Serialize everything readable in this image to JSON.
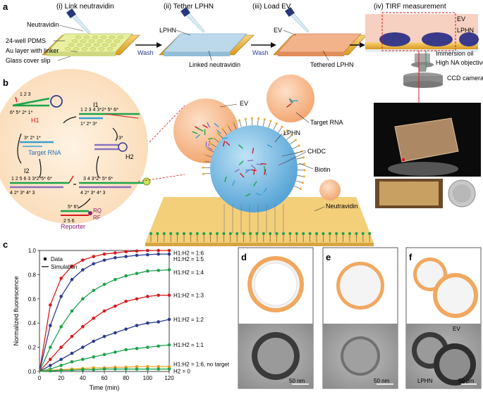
{
  "panel_labels": {
    "a": "a",
    "b": "b",
    "c": "c",
    "d": "d",
    "e": "e",
    "f": "f"
  },
  "panel_a": {
    "step1": "(i) Link neutravidin",
    "step2": "(ii) Tether LPHN",
    "step3": "(iii) Load EV",
    "step4": "(iv) TIRF measurement",
    "neutravidin": "Neutravidin",
    "pdms": "24-well PDMS",
    "au_layer": "Au layer with linker",
    "glass": "Glass cover slip",
    "wash1": "Wash",
    "wash2": "Wash",
    "lphn": "LPHN",
    "linked_neutravidin": "Linked neutravidin",
    "ev": "EV",
    "tethered_lphn": "Tethered LPHN",
    "tirf_ev": "EV",
    "tirf_lphn": "LPHN",
    "immersion_oil": "Immersion oil",
    "objective": "High NA objective",
    "camera": "CCD camera"
  },
  "panel_b": {
    "h1": "H1",
    "target_rna": "Target RNA",
    "i1": "I1",
    "h2": "H2",
    "i2": "I2",
    "reporter": "Reporter",
    "rq": "RQ",
    "rf": "RF",
    "ev": "EV",
    "target_rna2": "Target RNA",
    "lphn": "LPHN",
    "chdc": "CHDC",
    "biotin": "Biotin",
    "neutravidin": "Neutravidin",
    "h1_nums_top": "1  2  3",
    "h1_nums_bot": "6*  5*  2*  1*",
    "i1_nums": "1  2  3   4  3*2* 5* 6*",
    "i1_nums_bot": "1*  2*  3*",
    "t_nums": "3*  2*  1*",
    "h2_nums": "3*",
    "i2_nums_top": "1  2  5  6  3  3*2*5* 6*",
    "i2_nums_bot": "4  2*  3*  4*  3",
    "right_nums_top": "3  4  3*2* 5* 6*",
    "right_nums_bot": "4  2*  3*  4*  3",
    "rep_nums": "5*  6*",
    "rep_nums_bot": "2  5  6"
  },
  "chart_data": {
    "type": "line",
    "xlabel": "Time (min)",
    "ylabel": "Normalized fluorescence",
    "xlim": [
      0,
      120
    ],
    "ylim": [
      0,
      1.0
    ],
    "xticks": [
      0,
      20,
      40,
      60,
      80,
      100,
      120
    ],
    "yticks": [
      0.0,
      0.2,
      0.4,
      0.6,
      0.8,
      1.0
    ],
    "ytick_labels": [
      "0.0",
      "0.2",
      "0.4",
      "0.6",
      "0.8",
      "1.0"
    ],
    "legend": [
      {
        "label": "Data",
        "marker": "dot"
      },
      {
        "label": "Simulation",
        "marker": "line"
      }
    ],
    "x": [
      0,
      10,
      20,
      30,
      40,
      50,
      60,
      70,
      80,
      90,
      100,
      110,
      120
    ],
    "series": [
      {
        "name": "H1:H2 = 1:6",
        "color": "#d7191c",
        "values": [
          0,
          0.55,
          0.77,
          0.87,
          0.92,
          0.95,
          0.97,
          0.98,
          0.99,
          0.995,
          1.0,
          1.0,
          1.0
        ]
      },
      {
        "name": "H1:H2 = 1:5",
        "color": "#2b3a8f",
        "values": [
          0,
          0.38,
          0.62,
          0.76,
          0.84,
          0.89,
          0.92,
          0.94,
          0.95,
          0.96,
          0.965,
          0.97,
          0.97
        ]
      },
      {
        "name": "H1:H2 = 1:4",
        "color": "#1aa34a",
        "values": [
          0,
          0.2,
          0.37,
          0.5,
          0.6,
          0.67,
          0.72,
          0.76,
          0.79,
          0.81,
          0.83,
          0.835,
          0.84
        ]
      },
      {
        "name": "H1:H2 = 1:3",
        "color": "#d7191c",
        "values": [
          0,
          0.1,
          0.2,
          0.29,
          0.37,
          0.44,
          0.5,
          0.54,
          0.58,
          0.6,
          0.62,
          0.63,
          0.63
        ]
      },
      {
        "name": "H1:H2 = 1:2",
        "color": "#2b3a8f",
        "values": [
          0,
          0.05,
          0.1,
          0.15,
          0.2,
          0.25,
          0.29,
          0.32,
          0.35,
          0.38,
          0.4,
          0.41,
          0.43
        ]
      },
      {
        "name": "H1:H2 = 1:1",
        "color": "#1aa34a",
        "values": [
          0,
          0.02,
          0.05,
          0.08,
          0.1,
          0.12,
          0.14,
          0.16,
          0.18,
          0.19,
          0.2,
          0.21,
          0.22
        ]
      },
      {
        "name": "H1:H2 = 1:6, no target",
        "color": "#f0a020",
        "values": [
          0,
          0.01,
          0.015,
          0.02,
          0.025,
          0.03,
          0.03,
          0.035,
          0.035,
          0.04,
          0.04,
          0.04,
          0.04
        ]
      },
      {
        "name": "H2 = 0",
        "color": "#1aa34a",
        "values": [
          0,
          0.005,
          0.01,
          0.01,
          0.015,
          0.015,
          0.02,
          0.02,
          0.02,
          0.02,
          0.02,
          0.02,
          0.02
        ]
      }
    ],
    "series_labels": [
      "H1:H2 = 1:6",
      "H1:H2 = 1:5",
      "H1:H2 = 1:4",
      "H1:H2 = 1:3",
      "H1:H2 = 1:2",
      "H1:H2 = 1:1",
      "H1:H2 = 1:6, no target",
      "H2 = 0"
    ]
  },
  "panel_d": {
    "scale": "50 nm"
  },
  "panel_e": {
    "scale": "50 nm"
  },
  "panel_f": {
    "scale": "50 μm",
    "ev": "EV",
    "lphn": "LPHN"
  },
  "colors": {
    "orange_ev": "#f2a36c",
    "blue_lphn": "#6fb6e0",
    "gold": "#e8b23a",
    "red_dash": "#d7191c"
  }
}
